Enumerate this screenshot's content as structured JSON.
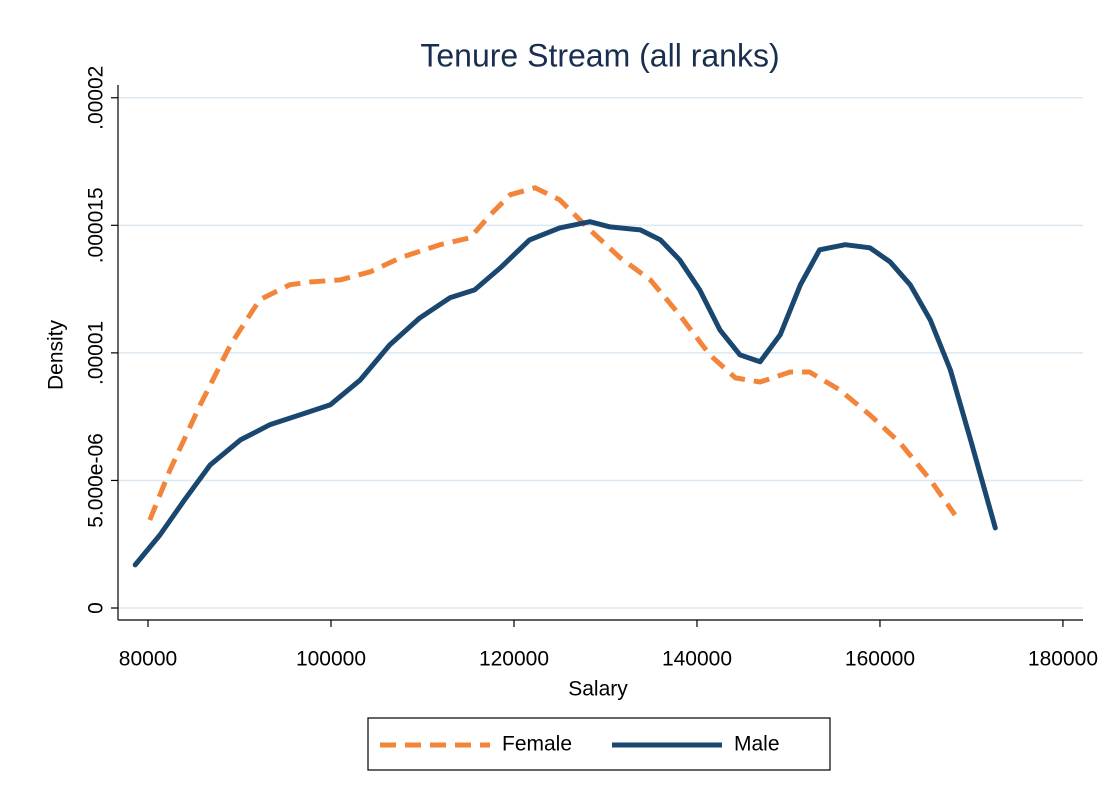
{
  "chart_data": {
    "type": "line",
    "title": "Tenure Stream (all ranks)",
    "x_label": "Salary",
    "y_label": "Density",
    "xlim": [
      76720,
      182190
    ],
    "ylim": [
      -4.7e-07,
      2.05e-05
    ],
    "xticks": [
      80000,
      100000,
      120000,
      140000,
      160000,
      180000
    ],
    "yticks": [
      0,
      {
        "value": 5e-06,
        "label": "5.000e-06"
      },
      {
        "value": 1e-05,
        "label": ".00001"
      },
      {
        "value": 1.5e-05,
        "label": ".000015"
      },
      {
        "value": 2e-05,
        "label": ".00002"
      }
    ],
    "grid": true,
    "legend": "bottom",
    "series": [
      {
        "name": "Female",
        "color": "#f2853a",
        "dash": true,
        "x": [
          80200,
          82400,
          85700,
          89000,
          92200,
          95500,
          97700,
          101000,
          104300,
          107600,
          111900,
          115200,
          117400,
          119600,
          122300,
          125000,
          128300,
          131600,
          134900,
          138100,
          141400,
          144200,
          146900,
          150200,
          152300,
          155600,
          158900,
          162200,
          165500,
          168200
        ],
        "values": [
          3.45e-06,
          5.41e-06,
          7.96e-06,
          1.031e-05,
          1.208e-05,
          1.267e-05,
          1.278e-05,
          1.286e-05,
          1.318e-05,
          1.373e-05,
          1.424e-05,
          1.451e-05,
          1.541e-05,
          1.62e-05,
          1.647e-05,
          1.6e-05,
          1.482e-05,
          1.373e-05,
          1.286e-05,
          1.149e-05,
          9.92e-06,
          9.02e-06,
          8.86e-06,
          9.25e-06,
          9.25e-06,
          8.55e-06,
          7.57e-06,
          6.47e-06,
          5.02e-06,
          3.65e-06
        ]
      },
      {
        "name": "Male",
        "color": "#1a476f",
        "dash": false,
        "x": [
          78600,
          81300,
          84000,
          86800,
          90100,
          93300,
          96600,
          99900,
          103200,
          106400,
          109700,
          113000,
          115700,
          118500,
          121700,
          125000,
          128300,
          130500,
          133800,
          136000,
          138100,
          140300,
          142500,
          144700,
          146900,
          149100,
          151300,
          153400,
          156200,
          158900,
          161100,
          163300,
          165500,
          167700,
          169900,
          172600
        ],
        "values": [
          1.69e-06,
          2.86e-06,
          4.24e-06,
          5.61e-06,
          6.59e-06,
          7.18e-06,
          7.57e-06,
          7.96e-06,
          8.94e-06,
          1.031e-05,
          1.137e-05,
          1.216e-05,
          1.247e-05,
          1.333e-05,
          1.443e-05,
          1.49e-05,
          1.514e-05,
          1.494e-05,
          1.482e-05,
          1.443e-05,
          1.365e-05,
          1.247e-05,
          1.09e-05,
          9.92e-06,
          9.65e-06,
          1.071e-05,
          1.267e-05,
          1.404e-05,
          1.424e-05,
          1.412e-05,
          1.357e-05,
          1.267e-05,
          1.129e-05,
          9.33e-06,
          6.59e-06,
          3.14e-06
        ]
      }
    ]
  }
}
